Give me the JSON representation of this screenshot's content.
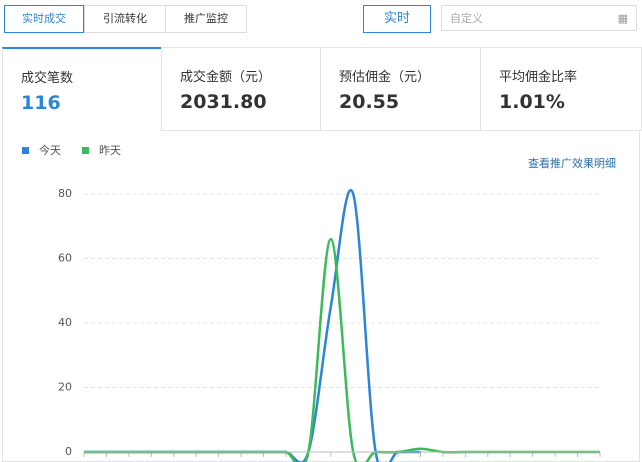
{
  "tabs": [
    "实时成交",
    "引流转化",
    "推广监控"
  ],
  "realtime_button": "实时",
  "date_input": "自定义",
  "stats": [
    {
      "label": "成交笔数",
      "value": "116"
    },
    {
      "label": "成交金额（元）",
      "value": "2031.80"
    },
    {
      "label": "预估佣金（元）",
      "value": "20.55"
    },
    {
      "label": "平均佣金比率",
      "value": "1.01%"
    }
  ],
  "detail_link": "查看推广效果明细",
  "chart_data": {
    "type": "line",
    "categories": [
      null,
      null,
      null,
      null,
      null,
      null,
      null,
      null,
      null,
      null,
      null,
      null,
      null,
      null,
      null,
      null,
      null,
      null,
      null,
      null,
      null,
      null,
      null,
      null
    ],
    "series": [
      {
        "name": "今天",
        "color": "#2b85d8",
        "values": [
          0,
          0,
          0,
          0,
          0,
          0,
          0,
          0,
          0,
          0,
          0,
          45,
          80,
          0,
          0,
          0,
          null,
          null,
          null,
          null,
          null,
          null,
          null,
          null
        ]
      },
      {
        "name": "昨天",
        "color": "#3cba5a",
        "values": [
          0,
          0,
          0,
          0,
          0,
          0,
          0,
          0,
          0,
          0,
          0,
          66,
          0,
          0,
          0,
          1,
          0,
          0,
          0,
          0,
          0,
          0,
          0,
          0
        ]
      }
    ],
    "ylim": [
      0,
      80
    ],
    "yticks": [
      0,
      20,
      40,
      60,
      80
    ],
    "grid": true
  }
}
